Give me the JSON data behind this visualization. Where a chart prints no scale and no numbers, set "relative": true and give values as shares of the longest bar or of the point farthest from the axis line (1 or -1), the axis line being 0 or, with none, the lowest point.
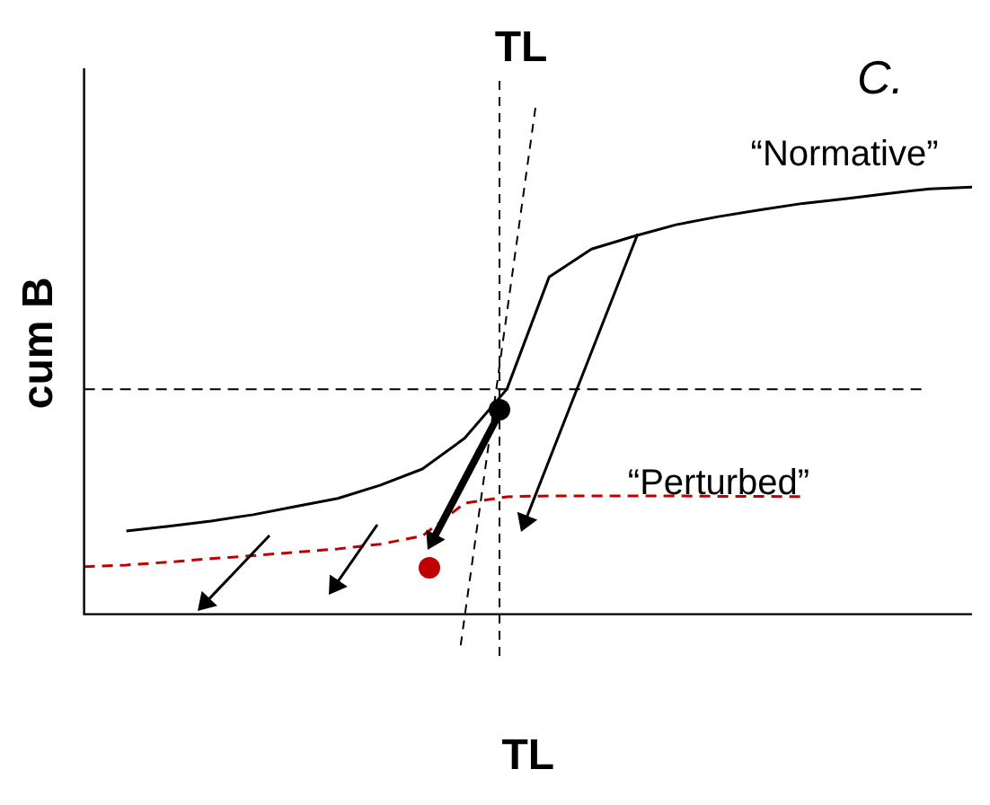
{
  "chart_data": {
    "type": "line",
    "relative": true,
    "xlabel": "TL",
    "ylabel": "cum B",
    "annotations": [
      "TL",
      "C."
    ],
    "categories": [
      null,
      null,
      null,
      null,
      null,
      null,
      null,
      null,
      null,
      null,
      null,
      null,
      null,
      null,
      null,
      null,
      null,
      null,
      null,
      null,
      null,
      null
    ],
    "series": [
      {
        "name": "“Normative”",
        "color": "#000000",
        "line_style": "solid",
        "values": [
          null,
          0.195,
          0.206,
          0.218,
          0.233,
          0.252,
          0.271,
          0.302,
          0.34,
          0.412,
          0.527,
          0.79,
          0.855,
          0.885,
          0.912,
          0.931,
          0.947,
          0.962,
          0.973,
          0.985,
          0.996,
          1
        ]
      },
      {
        "name": "“Perturbed”",
        "color": "#c00000",
        "line_style": "dashed",
        "values": [
          0.111,
          0.115,
          0.122,
          0.13,
          0.137,
          0.145,
          0.153,
          0.164,
          0.183,
          0.26,
          0.275,
          0.277,
          0.277,
          0.277,
          0.277,
          0.276,
          0.276,
          0.275,
          null,
          null,
          null,
          null
        ]
      }
    ],
    "ref_lines": [
      {
        "axis": "y",
        "value": 0.527,
        "color": "#000000",
        "line_style": "dashed"
      }
    ],
    "grid": false,
    "legend": false,
    "marker": "none"
  }
}
